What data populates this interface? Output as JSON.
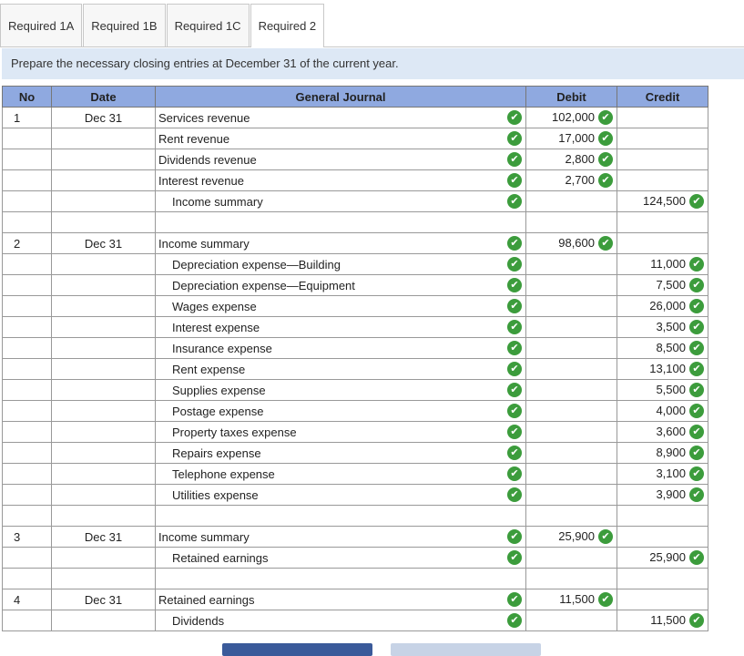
{
  "tabs": [
    {
      "label": "Required 1A"
    },
    {
      "label": "Required 1B"
    },
    {
      "label": "Required 1C"
    },
    {
      "label": "Required 2"
    }
  ],
  "instruction": "Prepare the necessary closing entries at December 31 of the current year.",
  "headers": {
    "no": "No",
    "date": "Date",
    "journal": "General Journal",
    "debit": "Debit",
    "credit": "Credit"
  },
  "check_color": "#3c9c3c",
  "rows": [
    {
      "no": "1",
      "date": "Dec 31",
      "account": "Services revenue",
      "indent": false,
      "debit": "102,000",
      "credit": ""
    },
    {
      "no": "",
      "date": "",
      "account": "Rent revenue",
      "indent": false,
      "debit": "17,000",
      "credit": ""
    },
    {
      "no": "",
      "date": "",
      "account": "Dividends revenue",
      "indent": false,
      "debit": "2,800",
      "credit": ""
    },
    {
      "no": "",
      "date": "",
      "account": "Interest revenue",
      "indent": false,
      "debit": "2,700",
      "credit": ""
    },
    {
      "no": "",
      "date": "",
      "account": "Income summary",
      "indent": true,
      "debit": "",
      "credit": "124,500"
    },
    {
      "blank": true
    },
    {
      "no": "2",
      "date": "Dec 31",
      "account": "Income summary",
      "indent": false,
      "debit": "98,600",
      "credit": ""
    },
    {
      "no": "",
      "date": "",
      "account": "Depreciation expense—Building",
      "indent": true,
      "debit": "",
      "credit": "11,000"
    },
    {
      "no": "",
      "date": "",
      "account": "Depreciation expense—Equipment",
      "indent": true,
      "debit": "",
      "credit": "7,500"
    },
    {
      "no": "",
      "date": "",
      "account": "Wages expense",
      "indent": true,
      "debit": "",
      "credit": "26,000"
    },
    {
      "no": "",
      "date": "",
      "account": "Interest expense",
      "indent": true,
      "debit": "",
      "credit": "3,500"
    },
    {
      "no": "",
      "date": "",
      "account": "Insurance expense",
      "indent": true,
      "debit": "",
      "credit": "8,500"
    },
    {
      "no": "",
      "date": "",
      "account": "Rent expense",
      "indent": true,
      "debit": "",
      "credit": "13,100"
    },
    {
      "no": "",
      "date": "",
      "account": "Supplies expense",
      "indent": true,
      "debit": "",
      "credit": "5,500"
    },
    {
      "no": "",
      "date": "",
      "account": "Postage expense",
      "indent": true,
      "debit": "",
      "credit": "4,000"
    },
    {
      "no": "",
      "date": "",
      "account": "Property taxes expense",
      "indent": true,
      "debit": "",
      "credit": "3,600"
    },
    {
      "no": "",
      "date": "",
      "account": "Repairs expense",
      "indent": true,
      "debit": "",
      "credit": "8,900"
    },
    {
      "no": "",
      "date": "",
      "account": "Telephone expense",
      "indent": true,
      "debit": "",
      "credit": "3,100"
    },
    {
      "no": "",
      "date": "",
      "account": "Utilities expense",
      "indent": true,
      "debit": "",
      "credit": "3,900"
    },
    {
      "blank": true
    },
    {
      "no": "3",
      "date": "Dec 31",
      "account": "Income summary",
      "indent": false,
      "debit": "25,900",
      "credit": ""
    },
    {
      "no": "",
      "date": "",
      "account": "Retained earnings",
      "indent": true,
      "debit": "",
      "credit": "25,900"
    },
    {
      "blank": true
    },
    {
      "no": "4",
      "date": "Dec 31",
      "account": "Retained earnings",
      "indent": false,
      "debit": "11,500",
      "credit": ""
    },
    {
      "no": "",
      "date": "",
      "account": "Dividends",
      "indent": true,
      "debit": "",
      "credit": "11,500"
    }
  ]
}
